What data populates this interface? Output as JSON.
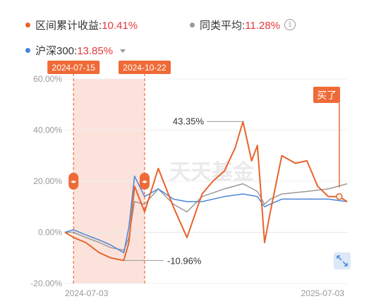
{
  "legend": [
    {
      "name": "区间累计收益",
      "value": "10.41%",
      "color": "#e8632b"
    },
    {
      "name": "同类平均",
      "value": "11.28%",
      "color": "#9a9a9a",
      "icon": "info-icon"
    },
    {
      "name": "沪深300",
      "value": "13.85%",
      "color": "#4a86d8",
      "icon": "caret-down-icon"
    }
  ],
  "range_start_label": "2024-07-15",
  "range_end_label": "2024-10-22",
  "buy_label": "买了",
  "max_label": "43.35%",
  "min_label": "-10.96%",
  "watermark": "天天基金",
  "colors": {
    "fund": "#e8632b",
    "fund_hi": "#52b43c",
    "category": "#9a9a9a",
    "index": "#4a86d8",
    "shade": "#fbe3dc",
    "tag": "#ef6a36"
  },
  "chart_data": {
    "type": "line",
    "ylim": [
      -20,
      60
    ],
    "yticks": [
      "60.00%",
      "40.00%",
      "20.00%",
      "0.00%",
      "-20.00%"
    ],
    "xticks": [
      "2024-07-03",
      "2025-07-03"
    ],
    "x_range": [
      "2024-07-03",
      "2025-07-31"
    ],
    "highlight_range": [
      "2024-07-15",
      "2024-10-22"
    ],
    "series": [
      {
        "name": "区间累计收益",
        "color": "#e8632b",
        "x": [
          "2024-07-03",
          "2024-07-15",
          "2024-08-01",
          "2024-08-20",
          "2024-09-05",
          "2024-09-23",
          "2024-09-30",
          "2024-10-08",
          "2024-10-22",
          "2024-11-10",
          "2024-12-01",
          "2024-12-20",
          "2025-01-10",
          "2025-01-25",
          "2025-02-10",
          "2025-02-25",
          "2025-03-08",
          "2025-03-20",
          "2025-03-28",
          "2025-04-07",
          "2025-04-15",
          "2025-05-01",
          "2025-05-20",
          "2025-06-05",
          "2025-06-20",
          "2025-07-05",
          "2025-07-20",
          "2025-07-31"
        ],
        "y": [
          0,
          -2,
          -4,
          -8,
          -10,
          -11,
          -4,
          18,
          8,
          25,
          10,
          -2,
          15,
          20,
          24,
          33,
          43.35,
          28,
          34,
          -4,
          8,
          30,
          27,
          28,
          18,
          14,
          14,
          12
        ]
      },
      {
        "name": "同类平均",
        "color": "#9a9a9a",
        "x": [
          "2024-07-03",
          "2024-07-15",
          "2024-08-01",
          "2024-08-20",
          "2024-09-05",
          "2024-09-23",
          "2024-09-30",
          "2024-10-08",
          "2024-10-22",
          "2024-11-10",
          "2024-12-01",
          "2024-12-20",
          "2025-01-10",
          "2025-02-10",
          "2025-03-08",
          "2025-03-28",
          "2025-04-07",
          "2025-04-15",
          "2025-05-01",
          "2025-06-05",
          "2025-07-05",
          "2025-07-31"
        ],
        "y": [
          0,
          0,
          -2,
          -4,
          -6,
          -7,
          -2,
          12,
          11,
          17,
          11,
          8,
          14,
          17,
          19,
          16,
          11,
          13,
          15,
          16,
          17,
          19
        ]
      },
      {
        "name": "沪深300",
        "color": "#4a86d8",
        "x": [
          "2024-07-03",
          "2024-07-15",
          "2024-08-01",
          "2024-08-20",
          "2024-09-05",
          "2024-09-23",
          "2024-09-30",
          "2024-10-08",
          "2024-10-22",
          "2024-11-10",
          "2024-12-01",
          "2024-12-20",
          "2025-01-10",
          "2025-02-10",
          "2025-03-08",
          "2025-03-28",
          "2025-04-07",
          "2025-04-15",
          "2025-05-01",
          "2025-06-05",
          "2025-07-05",
          "2025-07-31"
        ],
        "y": [
          0,
          1,
          -1,
          -3,
          -5,
          -8,
          2,
          22,
          14,
          17,
          13,
          12,
          12,
          14,
          15,
          14,
          10,
          11,
          13,
          13,
          13,
          12
        ]
      }
    ]
  }
}
